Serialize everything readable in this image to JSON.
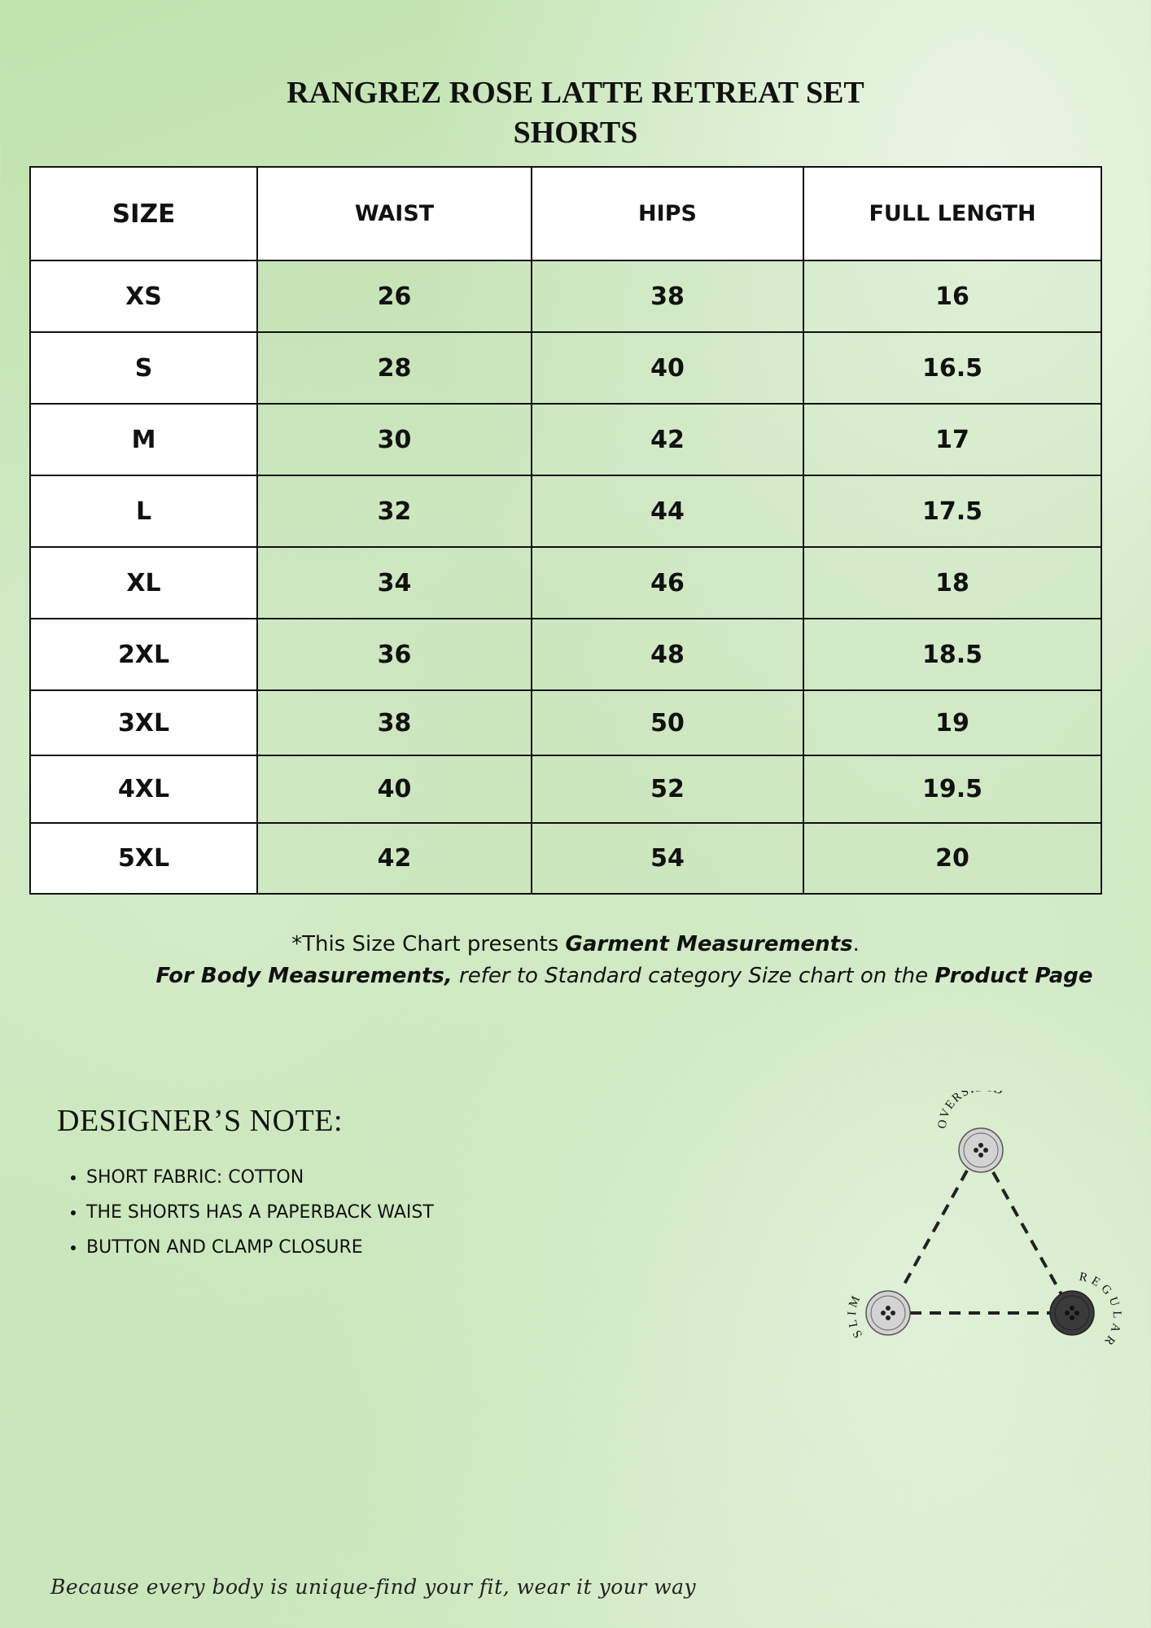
{
  "title": {
    "line1": "RANGREZ ROSE LATTE RETREAT SET",
    "line2": "SHORTS"
  },
  "table": {
    "headers": [
      "SIZE",
      "WAIST",
      "HIPS",
      "FULL LENGTH"
    ],
    "rows": [
      [
        "XS",
        "26",
        "38",
        "16"
      ],
      [
        "S",
        "28",
        "40",
        "16.5"
      ],
      [
        "M",
        "30",
        "42",
        "17"
      ],
      [
        "L",
        "32",
        "44",
        "17.5"
      ],
      [
        "XL",
        "34",
        "46",
        "18"
      ],
      [
        "2XL",
        "36",
        "48",
        "18.5"
      ],
      [
        "3XL",
        "38",
        "50",
        "19"
      ],
      [
        "4XL",
        "40",
        "52",
        "19.5"
      ],
      [
        "5XL",
        "42",
        "54",
        "20"
      ]
    ]
  },
  "notes": {
    "line1_pre": "*This Size Chart presents ",
    "line1_bold": "Garment Measurements",
    "line1_post": ".",
    "line2_bold": "For Body Measurements,",
    "line2_mid": " refer to Standard category Size chart on the ",
    "line2_bold2": "Product Page"
  },
  "designer_note": {
    "title": "DESIGNER’S NOTE:",
    "items": [
      "SHORT FABRIC: COTTON",
      "THE SHORTS HAS A PAPERBACK WAIST",
      "BUTTON AND CLAMP CLOSURE"
    ]
  },
  "fit_diagram": {
    "top": "OVERSIZED",
    "left": "SLIM",
    "right": "REGULAR",
    "selected": "REGULAR"
  },
  "footer": "Because every body is unique-find your fit, wear it your way"
}
